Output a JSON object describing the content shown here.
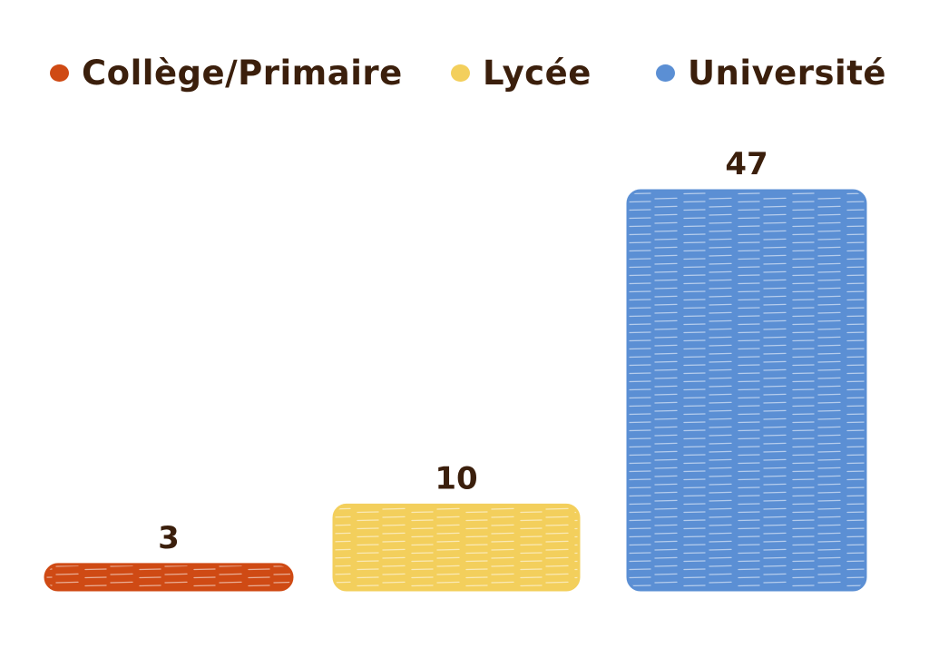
{
  "chart_data": {
    "type": "bar",
    "categories": [
      "Collège/Primaire",
      "Lycée",
      "Université"
    ],
    "values": [
      3,
      10,
      47
    ],
    "colors": [
      "#cf4a14",
      "#f3cf5c",
      "#5b8fd4"
    ],
    "label_color": "#3b1f0c",
    "legend": {
      "placement": "top",
      "entries": [
        "Collège/Primaire",
        "Lycée",
        "Université"
      ]
    },
    "data_labels": [
      "3",
      "10",
      "47"
    ],
    "title": "",
    "xlabel": "",
    "ylabel": "",
    "grid": false,
    "axes_visible": false,
    "ylim": [
      0,
      47
    ]
  }
}
